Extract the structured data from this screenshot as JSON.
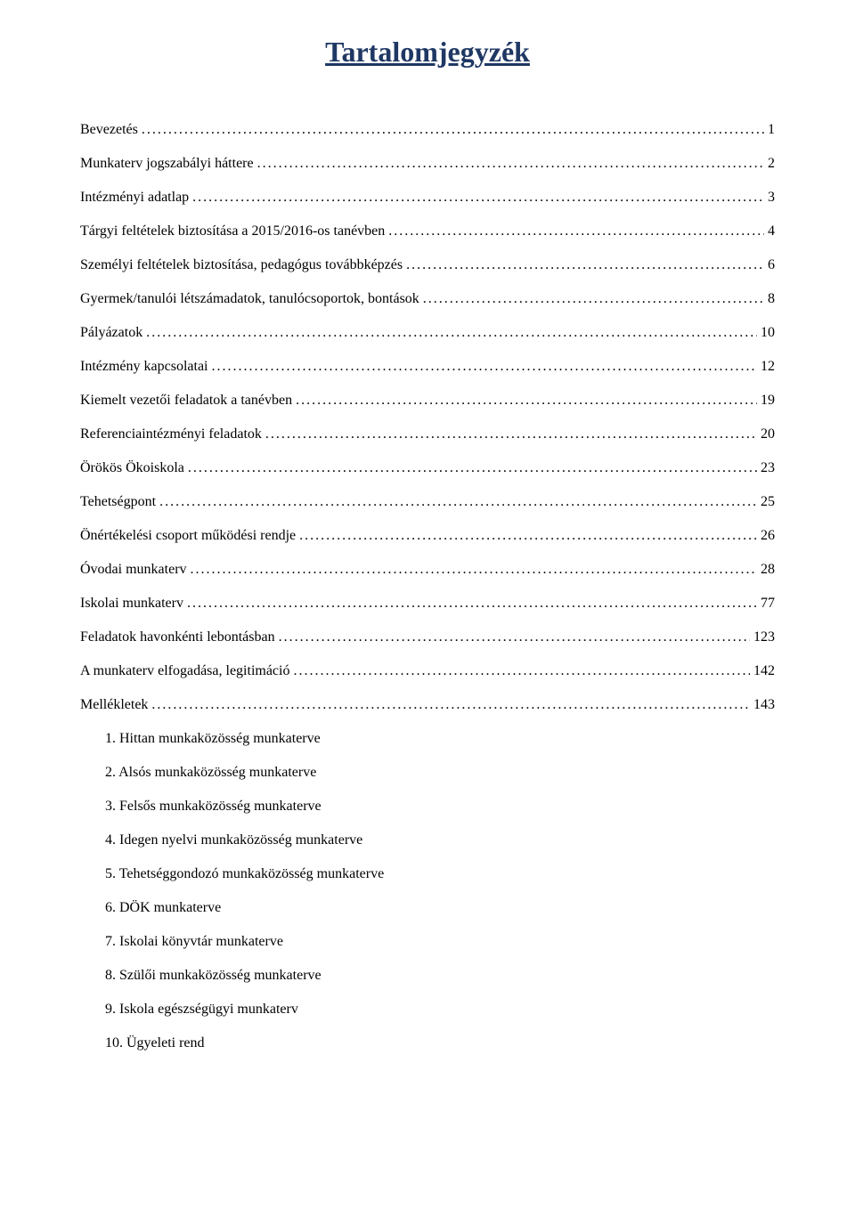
{
  "title": "Tartalomjegyzék",
  "title_color": "#1f3864",
  "title_fontsize": 32,
  "body_fontsize": 16,
  "text_color": "#000000",
  "background_color": "#ffffff",
  "toc_entries": [
    {
      "label": "Bevezetés",
      "page": "1"
    },
    {
      "label": "Munkaterv jogszabályi háttere",
      "page": "2"
    },
    {
      "label": "Intézményi adatlap",
      "page": "3"
    },
    {
      "label": "Tárgyi feltételek biztosítása a 2015/2016-os tanévben",
      "page": "4"
    },
    {
      "label": "Személyi feltételek biztosítása, pedagógus továbbképzés",
      "page": "6"
    },
    {
      "label": "Gyermek/tanulói létszámadatok, tanulócsoportok, bontások",
      "page": "8"
    },
    {
      "label": "Pályázatok",
      "page": "10"
    },
    {
      "label": "Intézmény kapcsolatai",
      "page": "12"
    },
    {
      "label": "Kiemelt vezetői feladatok a tanévben",
      "page": "19"
    },
    {
      "label": "Referenciaintézményi feladatok",
      "page": "20"
    },
    {
      "label": "Örökös Ökoiskola",
      "page": "23"
    },
    {
      "label": "Tehetségpont",
      "page": "25"
    },
    {
      "label": "Önértékelési csoport működési rendje",
      "page": "26"
    },
    {
      "label": "Óvodai munkaterv",
      "page": "28"
    },
    {
      "label": "Iskolai munkaterv",
      "page": "77"
    },
    {
      "label": "Feladatok havonkénti lebontásban",
      "page": "123"
    },
    {
      "label": "A munkaterv elfogadása, legitimáció",
      "page": "142"
    },
    {
      "label": "Mellékletek",
      "page": "143"
    }
  ],
  "sub_items": [
    "1.  Hittan munkaközösség munkaterve",
    "2.  Alsós munkaközösség munkaterve",
    "3.  Felsős munkaközösség munkaterve",
    "4.  Idegen nyelvi munkaközösség munkaterve",
    "5.  Tehetséggondozó munkaközösség munkaterve",
    "6.  DÖK munkaterve",
    "7.  Iskolai könyvtár munkaterve",
    "8.  Szülői munkaközösség munkaterve",
    "9.  Iskola egészségügyi munkaterv",
    "10. Ügyeleti rend"
  ]
}
